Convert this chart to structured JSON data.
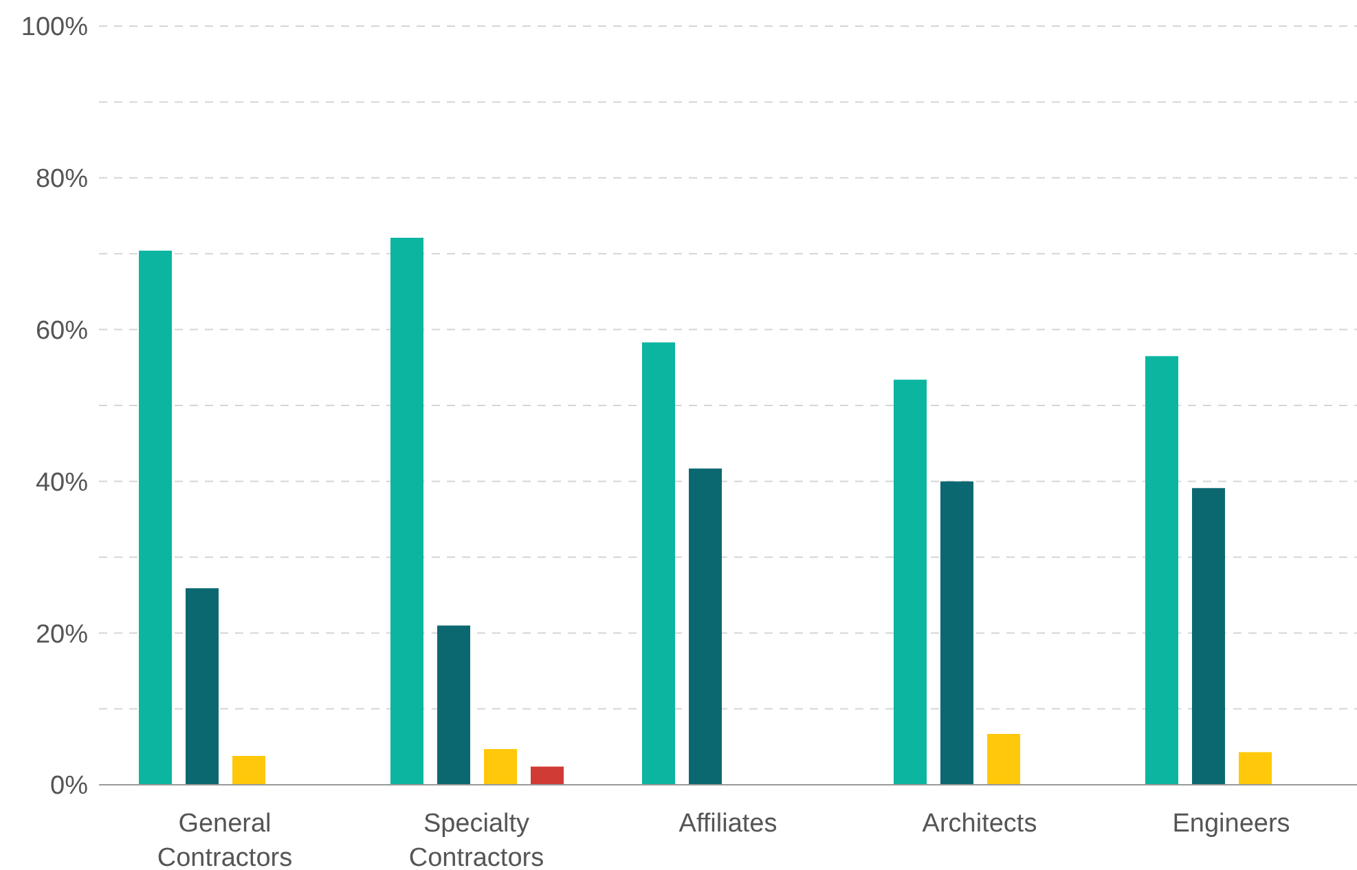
{
  "chart_data": {
    "type": "bar",
    "categories": [
      "General Contractors",
      "Specialty Contractors",
      "Affiliates",
      "Architects",
      "Engineers"
    ],
    "series": [
      {
        "color": "#0bb5a0",
        "values": [
          70.4,
          72.1,
          58.3,
          53.4,
          56.5
        ]
      },
      {
        "color": "#0c6870",
        "values": [
          25.9,
          21.0,
          41.7,
          40.0,
          39.1
        ]
      },
      {
        "color": "#ffc80a",
        "values": [
          3.8,
          4.7,
          0,
          6.7,
          4.3
        ]
      },
      {
        "color": "#d13b35",
        "values": [
          0,
          2.4,
          0,
          0,
          null
        ]
      }
    ],
    "ylim": [
      0,
      100
    ],
    "yticks": [
      {
        "value": 0,
        "label": "0%"
      },
      {
        "value": 10,
        "label": null
      },
      {
        "value": 20,
        "label": "20%"
      },
      {
        "value": 30,
        "label": null
      },
      {
        "value": 40,
        "label": "40%"
      },
      {
        "value": 50,
        "label": null
      },
      {
        "value": 60,
        "label": "60%"
      },
      {
        "value": 70,
        "label": null
      },
      {
        "value": 80,
        "label": "80%"
      },
      {
        "value": 90,
        "label": null
      },
      {
        "value": 100,
        "label": "100%"
      }
    ],
    "grid": "y",
    "legend": false
  }
}
